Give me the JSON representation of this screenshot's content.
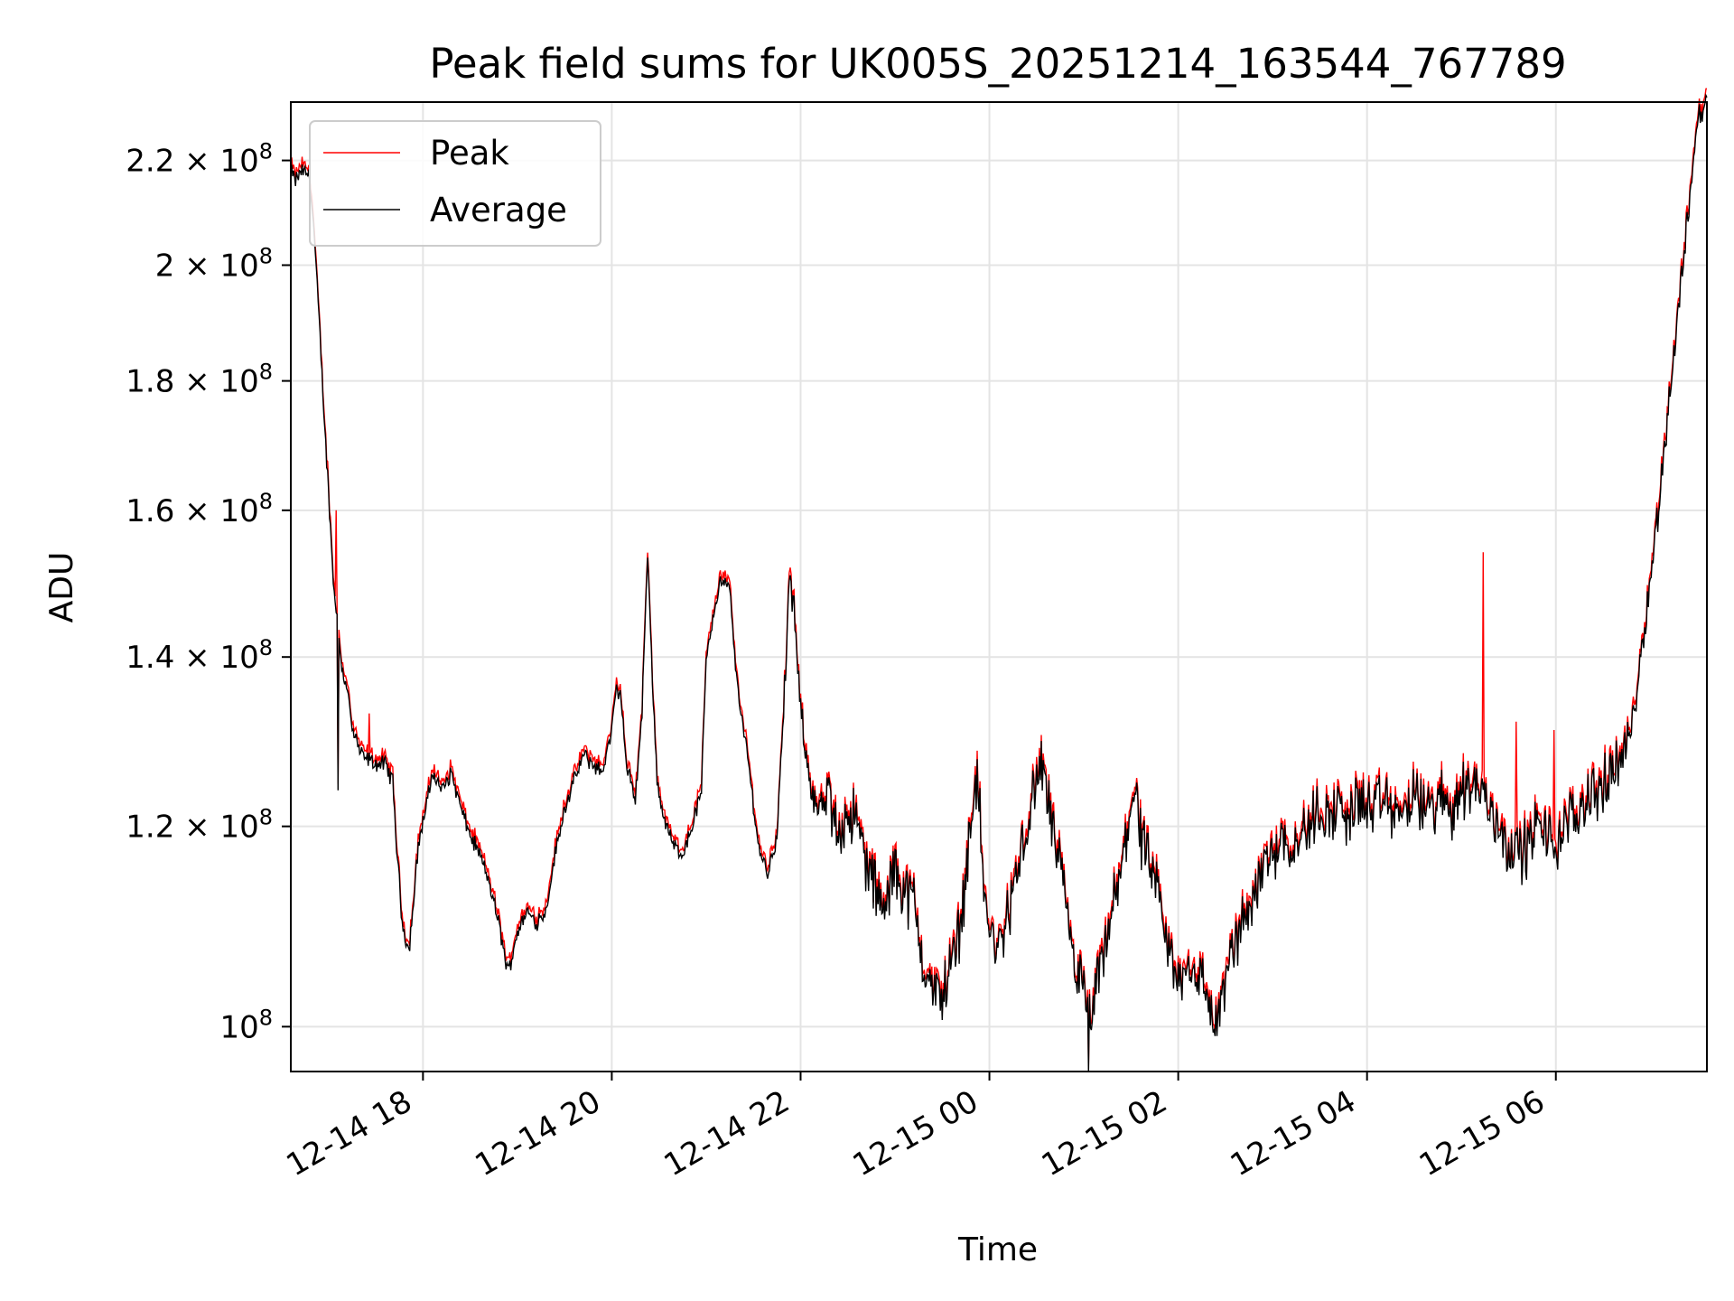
{
  "chart_data": {
    "type": "line",
    "title": "Peak field sums for UK005S_20251214_163544_767789",
    "xlabel": "Time",
    "ylabel": "ADU",
    "x_range_hours": [
      16.6,
      31.6
    ],
    "yscale": "log",
    "ylim": [
      96000000.0,
      232000000.0
    ],
    "x_ticks": [
      {
        "label": "12-14 18",
        "hour": 18
      },
      {
        "label": "12-14 20",
        "hour": 20
      },
      {
        "label": "12-14 22",
        "hour": 22
      },
      {
        "label": "12-15 00",
        "hour": 24
      },
      {
        "label": "12-15 02",
        "hour": 26
      },
      {
        "label": "12-15 04",
        "hour": 28
      },
      {
        "label": "12-15 06",
        "hour": 30
      }
    ],
    "y_ticks": [
      {
        "mantissa": "",
        "value": 100000000.0
      },
      {
        "mantissa": "1.2",
        "value": 120000000.0
      },
      {
        "mantissa": "1.4",
        "value": 140000000.0
      },
      {
        "mantissa": "1.6",
        "value": 160000000.0
      },
      {
        "mantissa": "1.8",
        "value": 180000000.0
      },
      {
        "mantissa": "2",
        "value": 200000000.0
      },
      {
        "mantissa": "2.2",
        "value": 220000000.0
      }
    ],
    "y_tick_times": "× 10",
    "y_tick_base": "8",
    "y_tick_prefix": "10",
    "grid": true,
    "legend_position": "top-left",
    "series": [
      {
        "name": "Peak",
        "color": "#ff0000"
      },
      {
        "name": "Average",
        "color": "#000000"
      }
    ],
    "anchor_points": [
      [
        16.6,
        218
      ],
      [
        16.65,
        216
      ],
      [
        16.72,
        218
      ],
      [
        16.8,
        217
      ],
      [
        16.85,
        205
      ],
      [
        16.95,
        175
      ],
      [
        17.05,
        150
      ],
      [
        17.15,
        138
      ],
      [
        17.2,
        136
      ],
      [
        17.25,
        131
      ],
      [
        17.35,
        128
      ],
      [
        17.5,
        127
      ],
      [
        17.6,
        127
      ],
      [
        17.68,
        125
      ],
      [
        17.72,
        118
      ],
      [
        17.78,
        110
      ],
      [
        17.85,
        107
      ],
      [
        17.9,
        112
      ],
      [
        17.95,
        118
      ],
      [
        18.05,
        123
      ],
      [
        18.1,
        126
      ],
      [
        18.2,
        124
      ],
      [
        18.3,
        126
      ],
      [
        18.4,
        122
      ],
      [
        18.5,
        119
      ],
      [
        18.6,
        117
      ],
      [
        18.7,
        114
      ],
      [
        18.8,
        110
      ],
      [
        18.9,
        105
      ],
      [
        19.0,
        109
      ],
      [
        19.1,
        111
      ],
      [
        19.2,
        110
      ],
      [
        19.3,
        111
      ],
      [
        19.4,
        117
      ],
      [
        19.5,
        122
      ],
      [
        19.6,
        125
      ],
      [
        19.7,
        128
      ],
      [
        19.8,
        127
      ],
      [
        19.9,
        126
      ],
      [
        20.0,
        131
      ],
      [
        20.05,
        136
      ],
      [
        20.1,
        135
      ],
      [
        20.15,
        127
      ],
      [
        20.25,
        123
      ],
      [
        20.32,
        133
      ],
      [
        20.38,
        154
      ],
      [
        20.42,
        140
      ],
      [
        20.48,
        125
      ],
      [
        20.55,
        121
      ],
      [
        20.65,
        118
      ],
      [
        20.75,
        117
      ],
      [
        20.85,
        120
      ],
      [
        20.95,
        124
      ],
      [
        21.0,
        140
      ],
      [
        21.07,
        145
      ],
      [
        21.15,
        150
      ],
      [
        21.25,
        149
      ],
      [
        21.3,
        140
      ],
      [
        21.38,
        132
      ],
      [
        21.45,
        127
      ],
      [
        21.55,
        118
      ],
      [
        21.65,
        115
      ],
      [
        21.75,
        119
      ],
      [
        21.82,
        133
      ],
      [
        21.88,
        150
      ],
      [
        21.93,
        146
      ],
      [
        22.0,
        133
      ],
      [
        22.1,
        125
      ],
      [
        22.2,
        121
      ],
      [
        22.3,
        123
      ],
      [
        22.4,
        119
      ],
      [
        22.5,
        122
      ],
      [
        22.6,
        120
      ],
      [
        22.7,
        116
      ],
      [
        22.8,
        113
      ],
      [
        22.9,
        111
      ],
      [
        23.0,
        116
      ],
      [
        23.1,
        113
      ],
      [
        23.2,
        112
      ],
      [
        23.3,
        106
      ],
      [
        23.4,
        103
      ],
      [
        23.5,
        103
      ],
      [
        23.6,
        106
      ],
      [
        23.7,
        110
      ],
      [
        23.78,
        118
      ],
      [
        23.85,
        126
      ],
      [
        23.9,
        121
      ],
      [
        23.95,
        112
      ],
      [
        24.0,
        109
      ],
      [
        24.1,
        107
      ],
      [
        24.2,
        111
      ],
      [
        24.3,
        115
      ],
      [
        24.4,
        120
      ],
      [
        24.5,
        125
      ],
      [
        24.55,
        127
      ],
      [
        24.6,
        124
      ],
      [
        24.7,
        118
      ],
      [
        24.8,
        112
      ],
      [
        24.9,
        106
      ],
      [
        25.0,
        103
      ],
      [
        25.05,
        100
      ],
      [
        25.1,
        102
      ],
      [
        25.2,
        106
      ],
      [
        25.3,
        111
      ],
      [
        25.4,
        115
      ],
      [
        25.5,
        123
      ],
      [
        25.55,
        124
      ],
      [
        25.6,
        119
      ],
      [
        25.7,
        115
      ],
      [
        25.8,
        112
      ],
      [
        25.9,
        107
      ],
      [
        26.0,
        104
      ],
      [
        26.1,
        106
      ],
      [
        26.2,
        105
      ],
      [
        26.3,
        103
      ],
      [
        26.4,
        100
      ],
      [
        26.5,
        104
      ],
      [
        26.6,
        108
      ],
      [
        26.7,
        110
      ],
      [
        26.8,
        113
      ],
      [
        26.9,
        116
      ],
      [
        27.0,
        117
      ],
      [
        27.1,
        119
      ],
      [
        27.2,
        118
      ],
      [
        27.3,
        119
      ],
      [
        27.4,
        120
      ],
      [
        27.5,
        122
      ],
      [
        27.6,
        121
      ],
      [
        27.7,
        122
      ],
      [
        27.8,
        121
      ],
      [
        27.9,
        123
      ],
      [
        28.0,
        122
      ],
      [
        28.1,
        122
      ],
      [
        28.2,
        123
      ],
      [
        28.3,
        121
      ],
      [
        28.4,
        122
      ],
      [
        28.5,
        123
      ],
      [
        28.6,
        122
      ],
      [
        28.7,
        122
      ],
      [
        28.8,
        123
      ],
      [
        28.9,
        122
      ],
      [
        29.0,
        124
      ],
      [
        29.1,
        125
      ],
      [
        29.2,
        124
      ],
      [
        29.3,
        122
      ],
      [
        29.4,
        120
      ],
      [
        29.5,
        118
      ],
      [
        29.6,
        117
      ],
      [
        29.7,
        118
      ],
      [
        29.8,
        120
      ],
      [
        29.9,
        119
      ],
      [
        30.0,
        118
      ],
      [
        30.1,
        120
      ],
      [
        30.2,
        121
      ],
      [
        30.3,
        123
      ],
      [
        30.4,
        124
      ],
      [
        30.5,
        124
      ],
      [
        30.6,
        126
      ],
      [
        30.7,
        128
      ],
      [
        30.8,
        131
      ],
      [
        30.9,
        140
      ],
      [
        31.0,
        150
      ],
      [
        31.1,
        162
      ],
      [
        31.2,
        177
      ],
      [
        31.3,
        192
      ],
      [
        31.4,
        210
      ],
      [
        31.5,
        228
      ],
      [
        31.6,
        232
      ]
    ],
    "peak_spikes": [
      {
        "hour": 17.08,
        "value": 160
      },
      {
        "hour": 17.43,
        "value": 133
      },
      {
        "hour": 29.23,
        "value": 154
      },
      {
        "hour": 29.58,
        "value": 132
      },
      {
        "hour": 29.98,
        "value": 131
      }
    ],
    "average_dips": [
      {
        "hour": 17.1,
        "value": 124
      },
      {
        "hour": 25.05,
        "value": 96
      }
    ]
  }
}
